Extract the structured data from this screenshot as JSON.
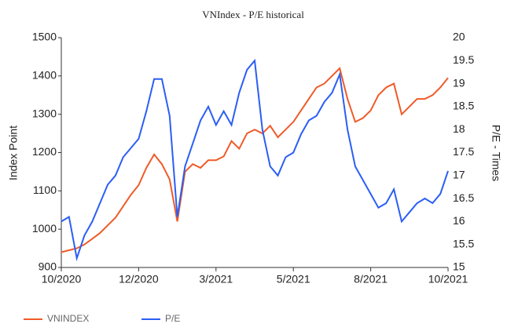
{
  "chart_data": {
    "type": "line",
    "title": "VNIndex - P/E historical",
    "ylabel": "Index Point",
    "y2label": "P/E - Times",
    "x": [
      0,
      2,
      4,
      6,
      8,
      10,
      12,
      14,
      16,
      18,
      20,
      22,
      24,
      26,
      28,
      30,
      32,
      34,
      36,
      38,
      40,
      42,
      44,
      46,
      48,
      50,
      52,
      54,
      56,
      58,
      60,
      62,
      64,
      66,
      68,
      70,
      72,
      74,
      76,
      78,
      80,
      82,
      84,
      86,
      88,
      90,
      92,
      94,
      96,
      98,
      100
    ],
    "xlim": [
      0,
      100
    ],
    "xticks": [
      {
        "value": 0,
        "label": "10/2020"
      },
      {
        "value": 20,
        "label": "12/2020"
      },
      {
        "value": 40,
        "label": "3/2021"
      },
      {
        "value": 60,
        "label": "5/2021"
      },
      {
        "value": 80,
        "label": "8/2021"
      },
      {
        "value": 100,
        "label": "10/2021"
      }
    ],
    "ylim": [
      900,
      1500
    ],
    "yticks": [
      900,
      1000,
      1100,
      1200,
      1300,
      1400,
      1500
    ],
    "y2lim": [
      15,
      20
    ],
    "y2ticks": [
      15,
      15.5,
      16,
      16.5,
      17,
      17.5,
      18,
      18.5,
      19,
      19.5,
      20
    ],
    "grid": false,
    "legend": "bottom-left",
    "series": [
      {
        "name": "VNINDEX",
        "color": "#f05a28",
        "values": [
          940,
          945,
          950,
          960,
          975,
          990,
          1010,
          1030,
          1060,
          1090,
          1115,
          1160,
          1195,
          1170,
          1130,
          1020,
          1150,
          1170,
          1160,
          1180,
          1180,
          1190,
          1230,
          1210,
          1250,
          1260,
          1250,
          1270,
          1240,
          1260,
          1280,
          1310,
          1340,
          1370,
          1380,
          1400,
          1420,
          1340,
          1280,
          1290,
          1310,
          1350,
          1370,
          1380,
          1300,
          1320,
          1340,
          1340,
          1350,
          1370,
          1395
        ]
      },
      {
        "name": "P/E",
        "color": "#2b5ef5",
        "axis": "y2",
        "values": [
          16.0,
          16.1,
          15.2,
          15.7,
          16.0,
          16.4,
          16.8,
          17.0,
          17.4,
          17.6,
          17.8,
          18.4,
          19.1,
          19.1,
          18.3,
          16.1,
          17.2,
          17.7,
          18.2,
          18.5,
          18.1,
          18.4,
          18.1,
          18.8,
          19.3,
          19.5,
          18.0,
          17.2,
          17.0,
          17.4,
          17.5,
          17.9,
          18.2,
          18.3,
          18.6,
          18.8,
          19.2,
          18.0,
          17.2,
          16.9,
          16.6,
          16.3,
          16.4,
          16.7,
          16.0,
          16.2,
          16.4,
          16.5,
          16.4,
          16.6,
          17.1
        ]
      }
    ]
  }
}
